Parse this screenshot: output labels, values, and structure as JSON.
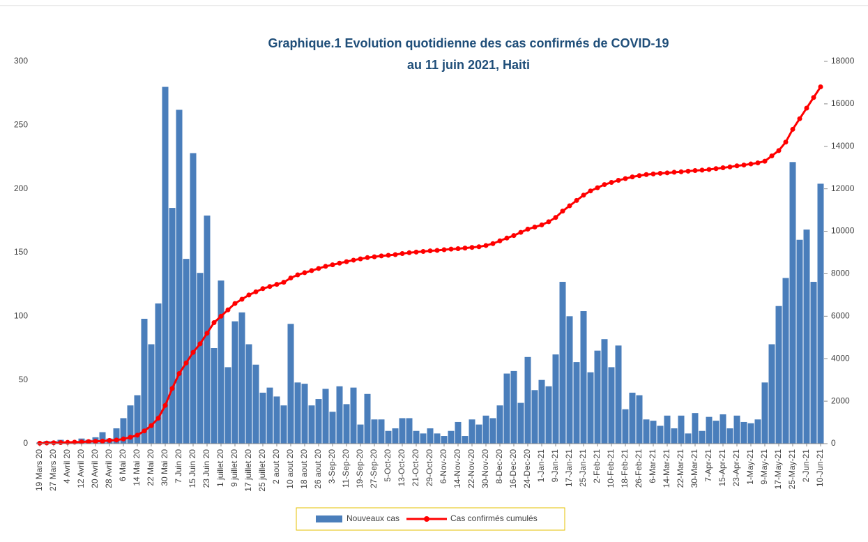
{
  "chart_data": {
    "type": "bar_line",
    "title": [
      "Graphique.1 Evolution quotidienne des cas confirmés de COVID-19",
      "au 11 juin 2021, Haiti"
    ],
    "categories": [
      "19 Mars 20",
      null,
      "27 Mars 20",
      null,
      "4 Avril 20",
      null,
      "12 Avril 20",
      null,
      "20 Avril 20",
      null,
      "28 Avril 20",
      null,
      "6 Mai 20",
      null,
      "14 Mai 20",
      null,
      "22 Mai 20",
      null,
      "30 Mai 20",
      null,
      "7 Juin 20",
      null,
      "15 Juin 20",
      null,
      "23 Juin 20",
      null,
      "1 juillet 20",
      null,
      "9 juillet 20",
      null,
      "17 juillet 20",
      null,
      "25 juillet 20",
      null,
      "2 aout 20",
      null,
      "10 aout 20",
      null,
      "18 aout 20",
      null,
      "26 aout 20",
      null,
      "3-Sep-20",
      null,
      "11-Sep-20",
      null,
      "19-Sep-20",
      null,
      "27-Sep-20",
      null,
      "5-Oct-20",
      null,
      "13-Oct-20",
      null,
      "21-Oct-20",
      null,
      "29-Oct-20",
      null,
      "6-Nov-20",
      null,
      "14-Nov-20",
      null,
      "22-Nov-20",
      null,
      "30-Nov-20",
      null,
      "8-Dec-20",
      null,
      "16-Dec-20",
      null,
      "24-Dec-20",
      null,
      "1-Jan-21",
      null,
      "9-Jan-21",
      null,
      "17-Jan-21",
      null,
      "25-Jan-21",
      null,
      "2-Feb-21",
      null,
      "10-Feb-21",
      null,
      "18-Feb-21",
      null,
      "26-Feb-21",
      null,
      "6-Mar-21",
      null,
      "14-Mar-21",
      null,
      "22-Mar-21",
      null,
      "30-Mar-21",
      null,
      "7-Apr-21",
      null,
      "15-Apr-21",
      null,
      "23-Apr-21",
      null,
      "1-May-21",
      null,
      "9-May-21",
      null,
      "17-May-21",
      null,
      "25-May-21",
      null,
      "2-Jun-21",
      null,
      "10-Jun-21"
    ],
    "series": [
      {
        "name": "Nouveaux cas",
        "type": "bar",
        "color": "#4a7ebb",
        "values": [
          1,
          2,
          2,
          3,
          1,
          2,
          4,
          3,
          5,
          9,
          4,
          12,
          20,
          30,
          38,
          98,
          78,
          110,
          280,
          185,
          262,
          145,
          228,
          134,
          179,
          75,
          128,
          60,
          96,
          103,
          78,
          62,
          40,
          44,
          37,
          30,
          94,
          48,
          47,
          30,
          35,
          43,
          25,
          45,
          31,
          44,
          15,
          39,
          19,
          19,
          10,
          12,
          20,
          20,
          10,
          8,
          12,
          8,
          6,
          10,
          17,
          6,
          19,
          15,
          22,
          20,
          30,
          55,
          57,
          32,
          68,
          42,
          50,
          45,
          70,
          127,
          100,
          64,
          104,
          56,
          73,
          82,
          60,
          77,
          27,
          40,
          38,
          19,
          18,
          14,
          22,
          12,
          22,
          8,
          24,
          10,
          21,
          18,
          23,
          12,
          22,
          17,
          16,
          19,
          48,
          78,
          108,
          130,
          221,
          160,
          168,
          127,
          204
        ]
      },
      {
        "name": "Cas confirmés cumulés",
        "type": "line",
        "axis": "y2",
        "color": "#ff0000",
        "values": [
          20,
          30,
          40,
          50,
          60,
          70,
          80,
          100,
          110,
          120,
          150,
          170,
          220,
          300,
          400,
          600,
          850,
          1200,
          1800,
          2600,
          3300,
          3800,
          4300,
          4700,
          5200,
          5700,
          6000,
          6300,
          6600,
          6800,
          7000,
          7150,
          7300,
          7400,
          7500,
          7600,
          7800,
          7950,
          8050,
          8150,
          8250,
          8350,
          8420,
          8500,
          8570,
          8640,
          8700,
          8760,
          8800,
          8840,
          8870,
          8900,
          8950,
          8990,
          9020,
          9050,
          9080,
          9100,
          9130,
          9160,
          9180,
          9210,
          9240,
          9270,
          9330,
          9420,
          9550,
          9680,
          9800,
          9950,
          10100,
          10200,
          10300,
          10450,
          10650,
          10950,
          11200,
          11450,
          11700,
          11900,
          12050,
          12200,
          12300,
          12400,
          12480,
          12560,
          12620,
          12670,
          12700,
          12730,
          12750,
          12780,
          12800,
          12830,
          12860,
          12880,
          12910,
          12950,
          12990,
          13030,
          13080,
          13120,
          13170,
          13220,
          13300,
          13550,
          13800,
          14200,
          14800,
          15300,
          15800,
          16300,
          16800
        ]
      }
    ],
    "ylim": [
      0,
      300
    ],
    "yticks": [
      0,
      50,
      100,
      150,
      200,
      250,
      300
    ],
    "y2lim": [
      0,
      18000
    ],
    "y2ticks": [
      0,
      2000,
      4000,
      6000,
      8000,
      10000,
      12000,
      14000,
      16000,
      18000
    ],
    "grid": false,
    "legend": "bottom"
  }
}
